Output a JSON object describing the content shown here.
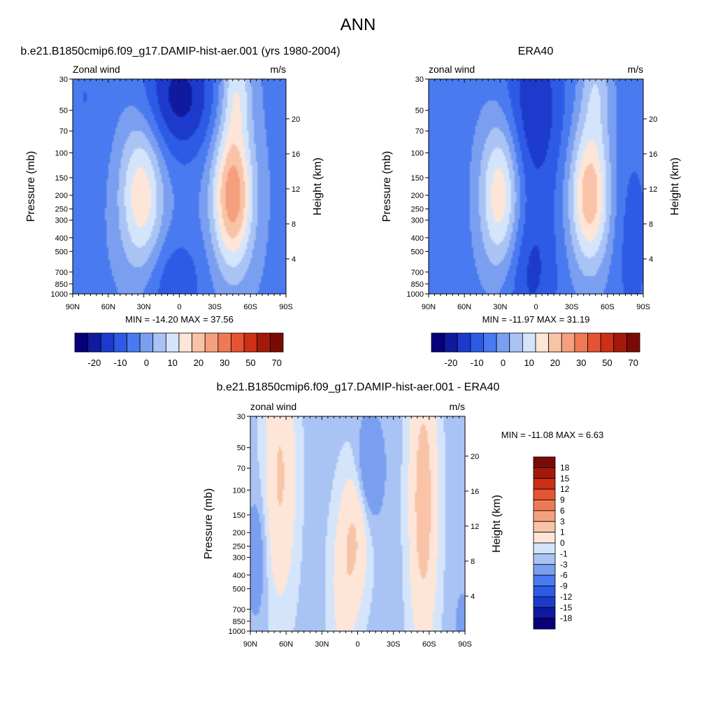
{
  "page": {
    "title": "ANN"
  },
  "colors": {
    "p18": [
      "#08007a",
      "#0f1a9e",
      "#1c3bcc",
      "#2d5be6",
      "#4a7af0",
      "#7a9ff0",
      "#a9c3f5",
      "#d4e5fb",
      "#fde5d8",
      "#f9c3a8",
      "#f4a07e",
      "#ee7a55",
      "#e55432",
      "#cc3015",
      "#a31a0a",
      "#7a0a05"
    ],
    "diff": [
      "#08007a",
      "#0f1a9e",
      "#1c3bcc",
      "#2d5be6",
      "#4a7af0",
      "#7a9ff0",
      "#a9c3f5",
      "#d4e5fb",
      "#fde5d8",
      "#f9c3a8",
      "#f4a07e",
      "#ee7a55",
      "#e55432",
      "#cc3015",
      "#a31a0a",
      "#7a0a05"
    ]
  },
  "chart_data": [
    {
      "type": "heatmap",
      "title": "b.e21.B1850cmip6.f09_g17.DAMIP-hist-aer.001 (yrs 1980-2004)",
      "left_string": "Zonal wind",
      "right_string": "m/s",
      "xlabel": "",
      "ylabel": "Pressure (mb)",
      "y2label": "Height (km)",
      "x_ticks": [
        "90N",
        "60N",
        "30N",
        "0",
        "30S",
        "60S",
        "90S"
      ],
      "x_range": [
        90,
        -90
      ],
      "y_ticks": [
        "30",
        "50",
        "70",
        "100",
        "150",
        "200",
        "250",
        "300",
        "400",
        "500",
        "700",
        "850",
        "1000"
      ],
      "y_values": [
        30,
        50,
        70,
        100,
        150,
        200,
        250,
        300,
        400,
        500,
        700,
        850,
        1000
      ],
      "y_range": [
        1000,
        30
      ],
      "y_scale": "log",
      "y2_ticks": [
        "4",
        "8",
        "12",
        "16",
        "20"
      ],
      "stats": "MIN = -14.20  MAX =  37.56",
      "min": -14.2,
      "max": 37.56,
      "colorbar": {
        "orientation": "horizontal",
        "labels": [
          "-20",
          "-10",
          "0",
          "10",
          "20",
          "30",
          "50",
          "70"
        ]
      },
      "jets": [
        {
          "lat": 32,
          "p": 200,
          "speed": 20
        },
        {
          "lat": -45,
          "p": 200,
          "speed": 37.56
        }
      ]
    },
    {
      "type": "heatmap",
      "title": "ERA40",
      "left_string": "zonal wind",
      "right_string": "m/s",
      "xlabel": "",
      "ylabel": "Pressure (mb)",
      "y2label": "Height (km)",
      "x_ticks": [
        "90N",
        "60N",
        "30N",
        "0",
        "30S",
        "60S",
        "90S"
      ],
      "x_range": [
        90,
        -90
      ],
      "y_ticks": [
        "30",
        "50",
        "70",
        "100",
        "150",
        "200",
        "250",
        "300",
        "400",
        "500",
        "700",
        "850",
        "1000"
      ],
      "y_values": [
        30,
        50,
        70,
        100,
        150,
        200,
        250,
        300,
        400,
        500,
        700,
        850,
        1000
      ],
      "y_range": [
        1000,
        30
      ],
      "y_scale": "log",
      "y2_ticks": [
        "4",
        "8",
        "12",
        "16",
        "20"
      ],
      "stats": "MIN = -11.97  MAX =  31.19",
      "min": -11.97,
      "max": 31.19,
      "colorbar": {
        "orientation": "horizontal",
        "labels": [
          "-20",
          "-10",
          "0",
          "10",
          "20",
          "30",
          "50",
          "70"
        ]
      },
      "jets": [
        {
          "lat": 30,
          "p": 200,
          "speed": 22
        },
        {
          "lat": -45,
          "p": 200,
          "speed": 31.19
        }
      ]
    },
    {
      "type": "heatmap",
      "title": "b.e21.B1850cmip6.f09_g17.DAMIP-hist-aer.001 - ERA40",
      "left_string": "zonal wind",
      "right_string": "m/s",
      "xlabel": "",
      "ylabel": "Pressure (mb)",
      "y2label": "Height (km)",
      "x_ticks": [
        "90N",
        "60N",
        "30N",
        "0",
        "30S",
        "60S",
        "90S"
      ],
      "x_range": [
        90,
        -90
      ],
      "y_ticks": [
        "30",
        "50",
        "70",
        "100",
        "150",
        "200",
        "250",
        "300",
        "400",
        "500",
        "700",
        "850",
        "1000"
      ],
      "y_values": [
        30,
        50,
        70,
        100,
        150,
        200,
        250,
        300,
        400,
        500,
        700,
        850,
        1000
      ],
      "y_range": [
        1000,
        30
      ],
      "y_scale": "log",
      "y2_ticks": [
        "4",
        "8",
        "12",
        "16",
        "20"
      ],
      "stats": "MIN = -11.08  MAX =   6.63",
      "min": -11.08,
      "max": 6.63,
      "colorbar": {
        "orientation": "vertical",
        "labels": [
          "18",
          "15",
          "12",
          "9",
          "6",
          "3",
          "1",
          "0",
          "-1",
          "-3",
          "-6",
          "-9",
          "-12",
          "-15",
          "-18"
        ]
      }
    }
  ]
}
